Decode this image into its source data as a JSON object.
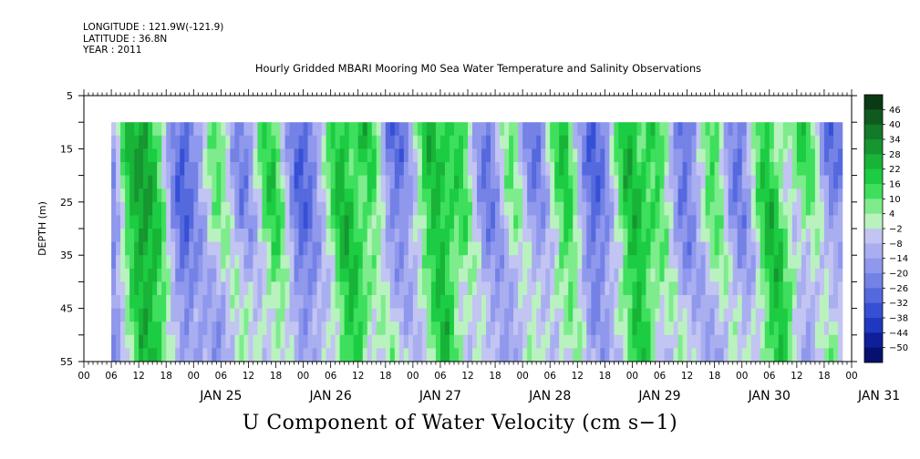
{
  "header": {
    "longitude": "LONGITUDE : 121.9W(-121.9)",
    "latitude": "LATITUDE : 36.8N",
    "year": "YEAR : 2011"
  },
  "chart_data": {
    "type": "heatmap",
    "title": "Hourly Gridded MBARI Mooring M0 Sea Water Temperature and Salinity Observations",
    "caption": "U Component of Water Velocity (cm s−1)",
    "ylabel": "DEPTH (m)",
    "y_reversed": true,
    "ylim": [
      5,
      55
    ],
    "y_ticks": [
      5,
      15,
      25,
      35,
      45,
      55
    ],
    "data_depth_range": [
      10,
      55
    ],
    "x_unit": "hours since Jan 24 2011 00:00",
    "xlim": [
      0,
      168
    ],
    "data_time_range": [
      6,
      166
    ],
    "x_hour_labels": [
      "00",
      "06",
      "12",
      "18",
      "00",
      "06",
      "12",
      "18",
      "00",
      "06",
      "12",
      "18",
      "00",
      "06",
      "12",
      "18",
      "00",
      "06",
      "12",
      "18",
      "00",
      "06",
      "12",
      "18",
      "00",
      "06",
      "12",
      "18",
      "00"
    ],
    "x_day_labels": [
      "JAN 25",
      "JAN 26",
      "JAN 27",
      "JAN 28",
      "JAN 29",
      "JAN 30",
      "JAN 31"
    ],
    "colorbar": {
      "tick_labels": [
        "46",
        "40",
        "34",
        "28",
        "22",
        "16",
        "10",
        "4",
        "−2",
        "−8",
        "−14",
        "−20",
        "−26",
        "−32",
        "−38",
        "−44",
        "−50"
      ],
      "levels": [
        46,
        40,
        34,
        28,
        22,
        16,
        10,
        4,
        -2,
        -8,
        -14,
        -20,
        -26,
        -32,
        -38,
        -44,
        -50
      ],
      "colors": [
        "#0a3a14",
        "#0f5a1e",
        "#127a28",
        "#15962f",
        "#17b437",
        "#1ccc42",
        "#3ddf5c",
        "#7eec8c",
        "#b9f2bf",
        "#c2c4f2",
        "#a9aef0",
        "#8f98ec",
        "#7482e6",
        "#5569de",
        "#3550d4",
        "#1f38c0",
        "#0f1f9a",
        "#06106e"
      ]
    },
    "pattern": {
      "green_bands_hours": [
        9,
        14,
        29,
        40,
        55,
        62,
        75,
        82,
        93,
        104,
        118,
        125,
        137,
        148,
        158
      ],
      "blue_bands_hours": [
        5,
        22,
        34,
        48,
        68,
        88,
        98,
        112,
        131,
        143,
        163
      ],
      "value_range": [
        -38,
        28
      ]
    }
  }
}
